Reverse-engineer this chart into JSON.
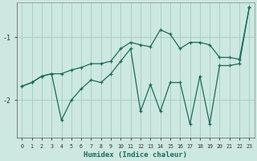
{
  "xlabel": "Humidex (Indice chaleur)",
  "bg_color": "#cce8e0",
  "grid_color": "#aacfc8",
  "line_color": "#1a6b5a",
  "xlim": [
    -0.5,
    23.5
  ],
  "ylim": [
    -2.6,
    -0.45
  ],
  "yticks": [
    -2,
    -1
  ],
  "line1_x": [
    0,
    1,
    2,
    3,
    4,
    5,
    6,
    7,
    8,
    9,
    10,
    11,
    12,
    13,
    14,
    15,
    16,
    17,
    18,
    19,
    20,
    21,
    22,
    23
  ],
  "line1_y": [
    -1.78,
    -1.72,
    -1.62,
    -1.58,
    -2.32,
    -2.0,
    -1.82,
    -1.68,
    -1.72,
    -1.58,
    -1.38,
    -1.18,
    -2.18,
    -1.75,
    -2.18,
    -1.72,
    -1.72,
    -2.38,
    -1.62,
    -2.38,
    -1.45,
    -1.45,
    -1.42,
    -0.52
  ],
  "line2_x": [
    0,
    1,
    2,
    3,
    4,
    5,
    6,
    7,
    8,
    9,
    10,
    11,
    12,
    13,
    14,
    15,
    16,
    17,
    18,
    19,
    20,
    21,
    22,
    23
  ],
  "line2_y": [
    -1.78,
    -1.72,
    -1.62,
    -1.58,
    -1.58,
    -1.52,
    -1.48,
    -1.42,
    -1.42,
    -1.38,
    -1.18,
    -1.08,
    -1.12,
    -1.15,
    -0.88,
    -0.95,
    -1.18,
    -1.08,
    -1.08,
    -1.12,
    -1.32,
    -1.32,
    -1.35,
    -0.52
  ]
}
